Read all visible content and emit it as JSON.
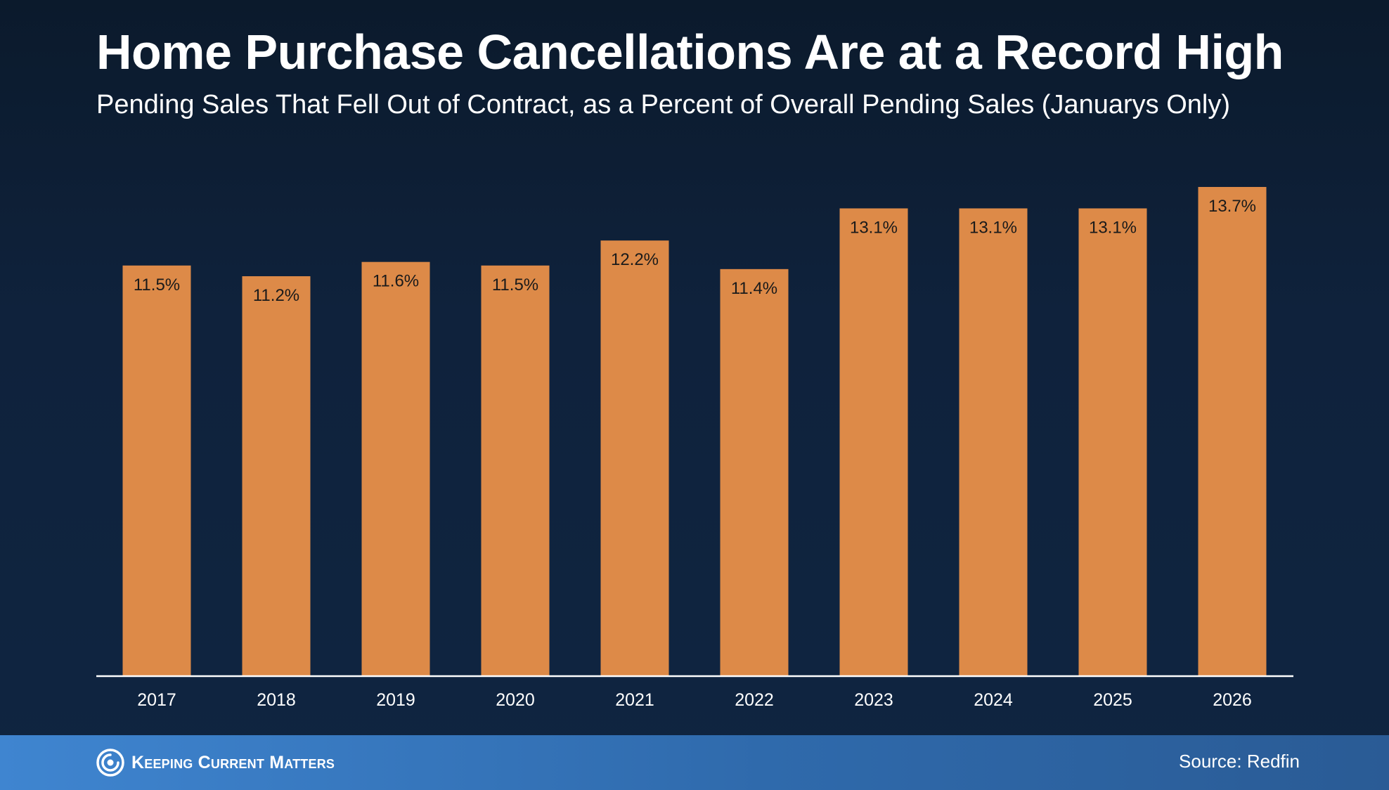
{
  "header": {
    "title": "Home Purchase Cancellations Are at a Record High",
    "subtitle": "Pending Sales That Fell Out of Contract, as a Percent of Overall Pending Sales (Januarys Only)"
  },
  "footer": {
    "logo_text": "Keeping Current Matters",
    "logo_icon": "swirl-logo-icon",
    "source": "Source: Redfin"
  },
  "colors": {
    "bar": "#dd8a48",
    "axis": "#ffffff",
    "label_text": "#1a1a1a"
  },
  "chart_data": {
    "type": "bar",
    "title": "Home Purchase Cancellations Are at a Record High",
    "subtitle": "Pending Sales That Fell Out of Contract, as a Percent of Overall Pending Sales (Januarys Only)",
    "xlabel": "",
    "ylabel": "",
    "categories": [
      "2017",
      "2018",
      "2019",
      "2020",
      "2021",
      "2022",
      "2023",
      "2024",
      "2025",
      "2026"
    ],
    "values": [
      11.5,
      11.2,
      11.6,
      11.5,
      12.2,
      11.4,
      13.1,
      13.1,
      13.1,
      13.7
    ],
    "labels": [
      "11.5%",
      "11.2%",
      "11.6%",
      "11.5%",
      "12.2%",
      "11.4%",
      "13.1%",
      "13.1%",
      "13.1%",
      "13.7%"
    ],
    "ylim": [
      0,
      13.7
    ],
    "grid": false,
    "legend": "none",
    "source": "Redfin"
  }
}
